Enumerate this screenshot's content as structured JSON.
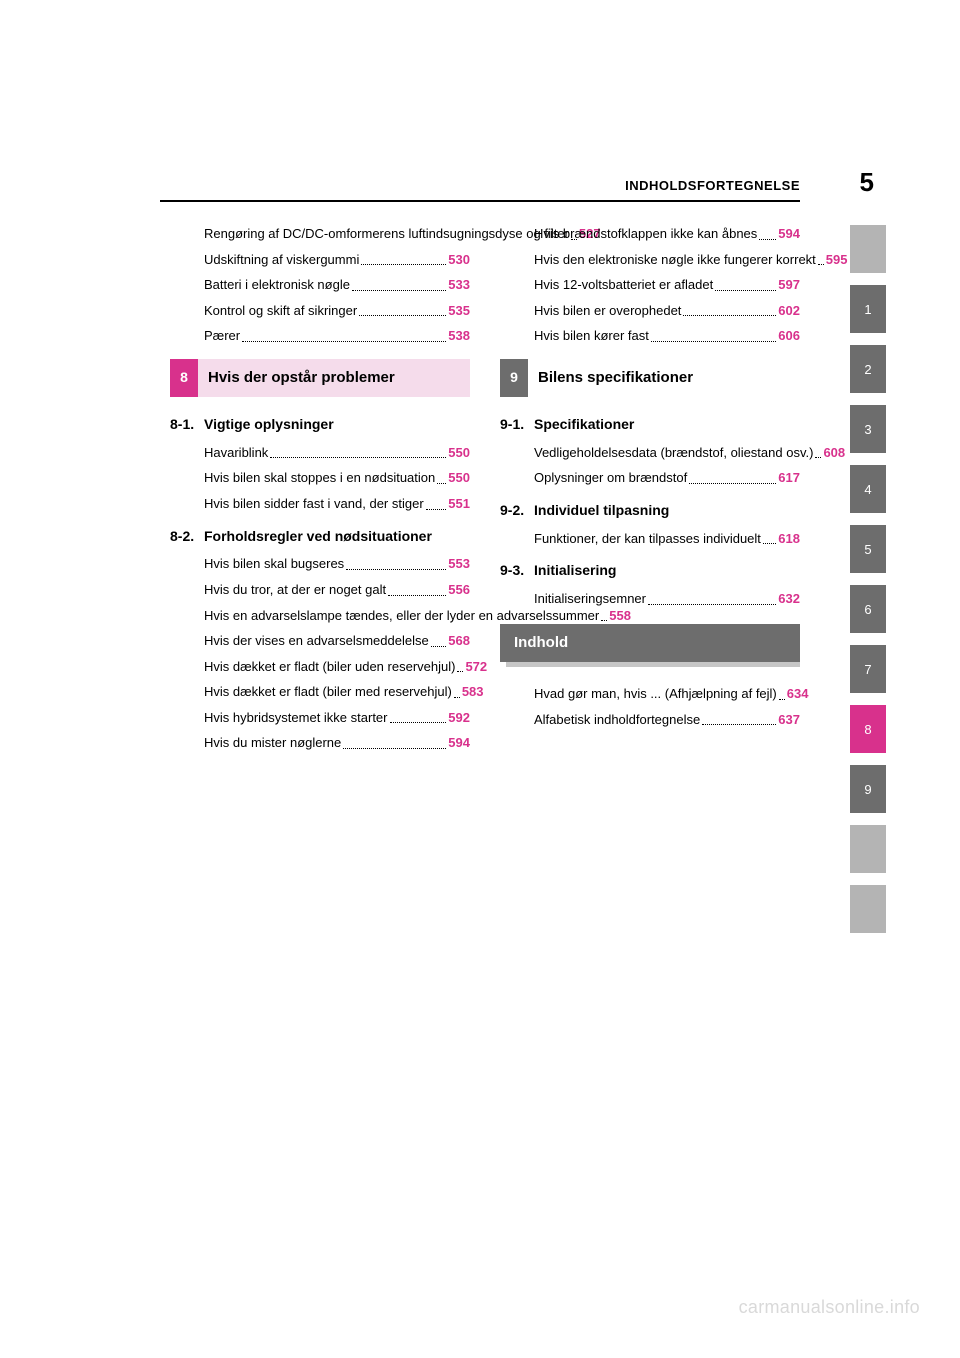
{
  "header": {
    "title": "INDHOLDSFORTEGNELSE",
    "page_number": "5"
  },
  "colors": {
    "accent": "#d8318c",
    "tab_gray": "#6d6d6d",
    "tab_blank": "#b4b4b4",
    "chapter_pink_bg": "#f5dceb",
    "watermark": "#d9d9d9"
  },
  "left": {
    "top_entries": [
      {
        "text": "Rengøring af DC/DC-omformerens luftindsugningsdyse og filter",
        "page": "527"
      },
      {
        "text": "Udskiftning af viskergummi",
        "page": "530"
      },
      {
        "text": "Batteri i elektronisk nøgle",
        "page": "533"
      },
      {
        "text": "Kontrol og skift af sikringer",
        "page": "535"
      },
      {
        "text": "Pærer",
        "page": "538"
      }
    ],
    "chapter8": {
      "num": "8",
      "title": "Hvis der opstår problemer"
    },
    "sec81": {
      "num": "8-1.",
      "title": "Vigtige oplysninger",
      "entries": [
        {
          "text": "Havariblink",
          "page": "550"
        },
        {
          "text": "Hvis bilen skal stoppes i en nødsituation",
          "page": "550"
        },
        {
          "text": "Hvis bilen sidder fast i vand, der stiger",
          "page": "551"
        }
      ]
    },
    "sec82": {
      "num": "8-2.",
      "title": "Forholdsregler ved nødsituationer",
      "entries": [
        {
          "text": "Hvis bilen skal bugseres",
          "page": "553"
        },
        {
          "text": "Hvis du tror, at der er noget galt",
          "page": "556"
        },
        {
          "text": "Hvis en advarselslampe tændes, eller der lyder en advarselssummer",
          "page": "558"
        },
        {
          "text": "Hvis der vises en advarselsmeddelelse",
          "page": "568"
        },
        {
          "text": "Hvis dækket er fladt (biler uden reservehjul)",
          "page": "572"
        },
        {
          "text": "Hvis dækket er fladt (biler med reservehjul)",
          "page": "583"
        },
        {
          "text": "Hvis hybridsystemet ikke starter",
          "page": "592"
        },
        {
          "text": "Hvis du mister nøglerne",
          "page": "594"
        }
      ]
    }
  },
  "right": {
    "top_entries": [
      {
        "text": "Hvis brændstofklappen ikke kan åbnes",
        "page": "594"
      },
      {
        "text": "Hvis den elektroniske nøgle ikke fungerer korrekt",
        "page": "595"
      },
      {
        "text": "Hvis 12-voltsbatteriet er afladet",
        "page": "597"
      },
      {
        "text": "Hvis bilen er overophedet",
        "page": "602"
      },
      {
        "text": "Hvis bilen kører fast",
        "page": "606"
      }
    ],
    "chapter9": {
      "num": "9",
      "title": "Bilens specifikationer"
    },
    "sec91": {
      "num": "9-1.",
      "title": "Specifikationer",
      "entries": [
        {
          "text": "Vedligeholdelsesdata (brændstof, oliestand osv.)",
          "page": "608"
        },
        {
          "text": "Oplysninger om brændstof",
          "page": "617"
        }
      ]
    },
    "sec92": {
      "num": "9-2.",
      "title": "Individuel tilpasning",
      "entries": [
        {
          "text": "Funktioner, der kan tilpasses individuelt",
          "page": "618"
        }
      ]
    },
    "sec93": {
      "num": "9-3.",
      "title": "Initialisering",
      "entries": [
        {
          "text": "Initialiseringsemner",
          "page": "632"
        }
      ]
    },
    "index_bar": {
      "title": "Indhold"
    },
    "index_entries": [
      {
        "text": "Hvad gør man, hvis ... (Afhjælpning af fejl)",
        "page": "634"
      },
      {
        "text": "Alfabetisk indholdfortegnelse",
        "page": "637"
      }
    ]
  },
  "tabs": [
    "",
    "1",
    "2",
    "3",
    "4",
    "5",
    "6",
    "7",
    "8",
    "9",
    "",
    ""
  ],
  "tabs_active": 8,
  "watermark": "carmanualsonline.info"
}
